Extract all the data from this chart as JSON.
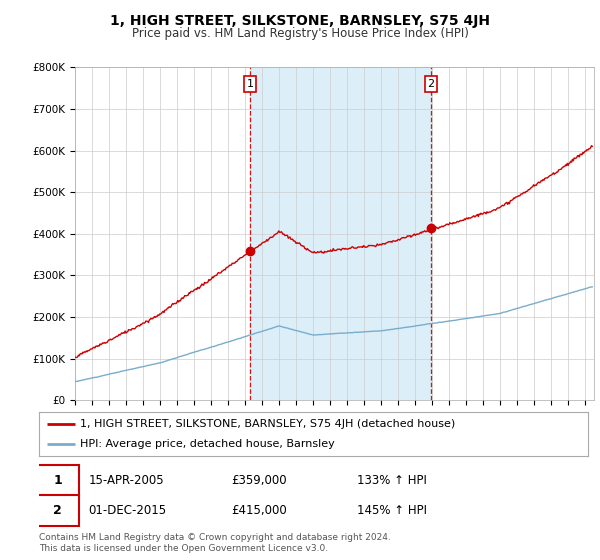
{
  "title": "1, HIGH STREET, SILKSTONE, BARNSLEY, S75 4JH",
  "subtitle": "Price paid vs. HM Land Registry's House Price Index (HPI)",
  "ylim": [
    0,
    800000
  ],
  "yticks": [
    0,
    100000,
    200000,
    300000,
    400000,
    500000,
    600000,
    700000,
    800000
  ],
  "ytick_labels": [
    "£0",
    "£100K",
    "£200K",
    "£300K",
    "£400K",
    "£500K",
    "£600K",
    "£700K",
    "£800K"
  ],
  "xlim_start": 1995.0,
  "xlim_end": 2025.5,
  "sale1_x": 2005.29,
  "sale1_y": 359000,
  "sale1_label": "1",
  "sale1_date": "15-APR-2005",
  "sale1_price": "£359,000",
  "sale1_hpi": "133% ↑ HPI",
  "sale2_x": 2015.92,
  "sale2_y": 415000,
  "sale2_label": "2",
  "sale2_date": "01-DEC-2015",
  "sale2_price": "£415,000",
  "sale2_hpi": "145% ↑ HPI",
  "red_color": "#cc0000",
  "blue_color": "#7aadcc",
  "shade_color": "#dceef7",
  "grid_color": "#cccccc",
  "background_color": "#ffffff",
  "legend_label_red": "1, HIGH STREET, SILKSTONE, BARNSLEY, S75 4JH (detached house)",
  "legend_label_blue": "HPI: Average price, detached house, Barnsley",
  "footnote": "Contains HM Land Registry data © Crown copyright and database right 2024.\nThis data is licensed under the Open Government Licence v3.0.",
  "title_fontsize": 10,
  "subtitle_fontsize": 8.5,
  "tick_fontsize": 7.5,
  "legend_fontsize": 8,
  "annotation_fontsize": 8.5
}
